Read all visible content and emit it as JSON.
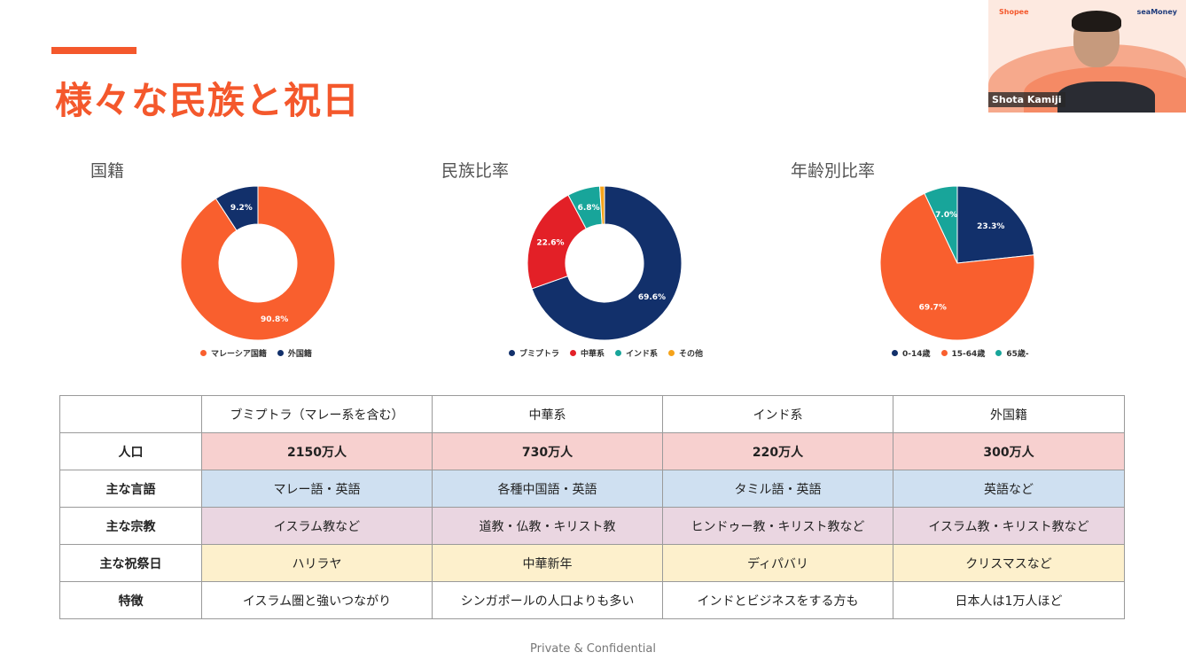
{
  "slide": {
    "title": "様々な民族と祝日",
    "footer": "Private & Confidential"
  },
  "webcam": {
    "participant_name": "Shota Kamiji",
    "logo_left": "Shopee",
    "logo_right": "seaMoney"
  },
  "chart_data": [
    {
      "type": "pie",
      "title": "国籍",
      "donut": true,
      "categories": [
        "マレーシア国籍",
        "外国籍"
      ],
      "values": [
        90.8,
        9.2
      ],
      "labels": [
        "90.8%",
        "9.2%"
      ],
      "colors": [
        "#f95f2e",
        "#12306b"
      ],
      "legend_position": "bottom"
    },
    {
      "type": "pie",
      "title": "民族比率",
      "donut": true,
      "categories": [
        "ブミプトラ",
        "中華系",
        "インド系",
        "その他"
      ],
      "values": [
        69.6,
        22.6,
        6.8,
        1.0
      ],
      "labels": [
        "69.6%",
        "22.6%",
        "6.8%",
        ""
      ],
      "colors": [
        "#12306b",
        "#e32027",
        "#18a59a",
        "#f5a31a"
      ],
      "legend_position": "bottom"
    },
    {
      "type": "pie",
      "title": "年齢別比率",
      "donut": false,
      "categories": [
        "0-14歳",
        "15-64歳",
        "65歳-"
      ],
      "values": [
        23.3,
        69.7,
        7.0
      ],
      "labels": [
        "23.3%",
        "69.7%",
        "7.0%"
      ],
      "colors": [
        "#12306b",
        "#f95f2e",
        "#18a59a"
      ],
      "legend_position": "bottom"
    }
  ],
  "table": {
    "columns": [
      "",
      "ブミプトラ（マレー系を含む）",
      "中華系",
      "インド系",
      "外国籍"
    ],
    "rows": [
      {
        "label": "人口",
        "cells": [
          "2150万人",
          "730万人",
          "220万人",
          "300万人"
        ]
      },
      {
        "label": "主な言語",
        "cells": [
          "マレー語・英語",
          "各種中国語・英語",
          "タミル語・英語",
          "英語など"
        ]
      },
      {
        "label": "主な宗教",
        "cells": [
          "イスラム教など",
          "道教・仏教・キリスト教",
          "ヒンドゥー教・キリスト教など",
          "イスラム教・キリスト教など"
        ]
      },
      {
        "label": "主な祝祭日",
        "cells": [
          "ハリラヤ",
          "中華新年",
          "ディパバリ",
          "クリスマスなど"
        ]
      },
      {
        "label": "特徴",
        "cells": [
          "イスラム圏と強いつながり",
          "シンガポールの人口よりも多い",
          "インドとビジネスをする方も",
          "日本人は1万人ほど"
        ]
      }
    ]
  }
}
